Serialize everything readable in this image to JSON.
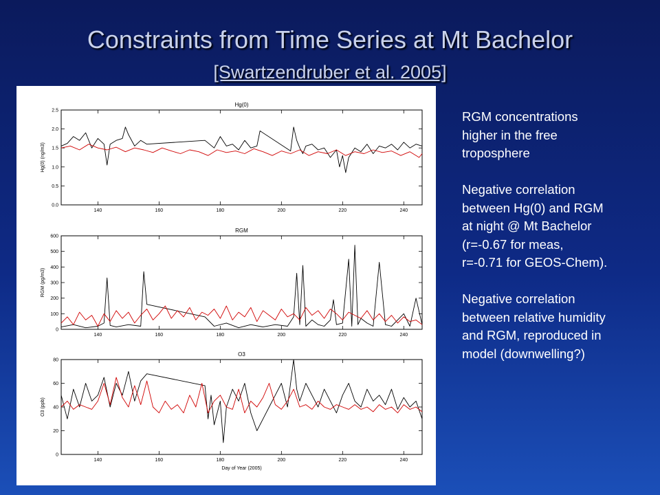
{
  "slide": {
    "title": "Constraints from Time Series at Mt Bachelor",
    "subtitle": "[Swartzendruber et al. 2005]"
  },
  "notes": [
    [
      "RGM concentrations",
      "higher in the free",
      "troposphere"
    ],
    [
      "Negative correlation",
      "between Hg(0) and RGM",
      "at night @ Mt Bachelor",
      "(r=-0.67 for meas,",
      "r=-0.71 for GEOS-Chem)."
    ],
    [
      "Negative correlation",
      "between relative humidity",
      "and RGM, reproduced in",
      "model (downwelling?)"
    ]
  ],
  "colors": {
    "measured": "#000000",
    "model": "#d00000"
  },
  "chart_data": [
    {
      "type": "line",
      "title": "Hg(0)",
      "ylabel": "Hg(0) (ng/m3)",
      "xlabel": "",
      "xlim": [
        128,
        246
      ],
      "ylim": [
        0,
        2.5
      ],
      "xticks": [
        140,
        160,
        180,
        200,
        220,
        240
      ],
      "yticks": [
        0.0,
        0.5,
        1.0,
        1.5,
        2.0,
        2.5
      ],
      "ytick_labels": [
        "0.0",
        "0.5",
        "1.0",
        "1.5",
        "2.0",
        "2.5"
      ],
      "series": [
        {
          "color": "#000000",
          "x": [
            128,
            130,
            132,
            134,
            136,
            138,
            140,
            142,
            143,
            144,
            146,
            148,
            149,
            150,
            152,
            154,
            156,
            175,
            178,
            180,
            182,
            184,
            186,
            188,
            190,
            192,
            193,
            203,
            204,
            205,
            206,
            207,
            208,
            210,
            212,
            214,
            216,
            218,
            219,
            220,
            221,
            222,
            224,
            226,
            228,
            230,
            232,
            234,
            236,
            238,
            240,
            242,
            244,
            246
          ],
          "y": [
            1.55,
            1.62,
            1.8,
            1.7,
            1.9,
            1.5,
            1.75,
            1.6,
            1.05,
            1.6,
            1.7,
            1.75,
            2.05,
            1.85,
            1.55,
            1.7,
            1.6,
            1.7,
            1.5,
            1.8,
            1.55,
            1.6,
            1.45,
            1.7,
            1.5,
            1.55,
            1.95,
            1.42,
            2.05,
            1.7,
            1.5,
            1.35,
            1.55,
            1.6,
            1.45,
            1.5,
            1.25,
            1.45,
            1.0,
            1.3,
            0.85,
            1.25,
            1.5,
            1.4,
            1.6,
            1.35,
            1.55,
            1.5,
            1.6,
            1.45,
            1.65,
            1.5,
            1.6,
            1.55
          ]
        },
        {
          "color": "#d00000",
          "x": [
            128,
            131,
            134,
            137,
            140,
            143,
            146,
            149,
            152,
            155,
            158,
            161,
            164,
            167,
            170,
            173,
            176,
            179,
            182,
            185,
            188,
            191,
            194,
            197,
            200,
            203,
            206,
            209,
            212,
            215,
            218,
            221,
            224,
            227,
            230,
            233,
            236,
            239,
            242,
            245,
            246
          ],
          "y": [
            1.5,
            1.55,
            1.45,
            1.6,
            1.5,
            1.45,
            1.52,
            1.4,
            1.5,
            1.45,
            1.38,
            1.5,
            1.42,
            1.35,
            1.45,
            1.4,
            1.3,
            1.45,
            1.38,
            1.42,
            1.35,
            1.48,
            1.4,
            1.3,
            1.42,
            1.35,
            1.45,
            1.3,
            1.4,
            1.35,
            1.45,
            1.3,
            1.4,
            1.35,
            1.45,
            1.38,
            1.42,
            1.3,
            1.4,
            1.25,
            1.35
          ]
        }
      ]
    },
    {
      "type": "line",
      "title": "RGM",
      "ylabel": "RGM (pg/m3)",
      "xlabel": "",
      "xlim": [
        128,
        246
      ],
      "ylim": [
        0,
        600
      ],
      "xticks": [
        140,
        160,
        180,
        200,
        220,
        240
      ],
      "yticks": [
        0,
        100,
        200,
        300,
        400,
        500,
        600
      ],
      "ytick_labels": [
        "0",
        "100",
        "200",
        "300",
        "400",
        "500",
        "600"
      ],
      "series": [
        {
          "color": "#000000",
          "x": [
            128,
            132,
            136,
            140,
            142,
            143,
            144,
            146,
            150,
            154,
            155,
            156,
            175,
            178,
            182,
            186,
            190,
            194,
            198,
            202,
            204,
            205,
            206,
            207,
            208,
            210,
            212,
            214,
            216,
            217,
            218,
            220,
            222,
            223,
            224,
            225,
            226,
            228,
            230,
            232,
            234,
            236,
            238,
            240,
            242,
            244,
            246
          ],
          "y": [
            15,
            30,
            10,
            20,
            40,
            330,
            25,
            15,
            30,
            20,
            370,
            160,
            80,
            20,
            40,
            10,
            30,
            15,
            30,
            20,
            80,
            360,
            30,
            410,
            20,
            60,
            30,
            20,
            60,
            190,
            30,
            40,
            450,
            20,
            540,
            30,
            70,
            40,
            20,
            430,
            30,
            20,
            60,
            100,
            20,
            200,
            30
          ]
        },
        {
          "color": "#d00000",
          "x": [
            128,
            130,
            132,
            134,
            136,
            138,
            140,
            142,
            144,
            146,
            148,
            150,
            152,
            154,
            156,
            158,
            160,
            162,
            164,
            166,
            168,
            170,
            172,
            174,
            176,
            178,
            180,
            182,
            184,
            186,
            188,
            190,
            192,
            194,
            196,
            198,
            200,
            202,
            204,
            206,
            208,
            210,
            212,
            214,
            216,
            218,
            220,
            222,
            224,
            226,
            228,
            230,
            232,
            234,
            236,
            238,
            240,
            242,
            244,
            246
          ],
          "y": [
            40,
            80,
            30,
            110,
            60,
            90,
            20,
            100,
            50,
            120,
            70,
            110,
            40,
            90,
            130,
            60,
            100,
            150,
            70,
            120,
            80,
            140,
            60,
            110,
            90,
            130,
            70,
            150,
            60,
            110,
            80,
            140,
            50,
            120,
            90,
            60,
            130,
            80,
            100,
            60,
            140,
            90,
            120,
            70,
            130,
            100,
            60,
            110,
            90,
            70,
            120,
            60,
            100,
            50,
            90,
            40,
            80,
            50,
            60,
            30
          ]
        }
      ]
    },
    {
      "type": "line",
      "title": "O3",
      "ylabel": "O3 (ppb)",
      "xlabel": "Day of Year (2005)",
      "xlim": [
        128,
        246
      ],
      "ylim": [
        0,
        80
      ],
      "xticks": [
        140,
        160,
        180,
        200,
        220,
        240
      ],
      "yticks": [
        0,
        20,
        40,
        60,
        80
      ],
      "ytick_labels": [
        "0",
        "20",
        "40",
        "60",
        "80"
      ],
      "series": [
        {
          "color": "#000000",
          "x": [
            128,
            130,
            132,
            134,
            136,
            138,
            140,
            142,
            144,
            146,
            148,
            150,
            152,
            154,
            156,
            175,
            176,
            177,
            178,
            180,
            181,
            182,
            184,
            186,
            188,
            190,
            192,
            194,
            196,
            198,
            200,
            202,
            204,
            205,
            206,
            208,
            210,
            212,
            214,
            216,
            218,
            220,
            222,
            224,
            226,
            228,
            230,
            232,
            234,
            236,
            238,
            240,
            242,
            244,
            246
          ],
          "y": [
            50,
            30,
            55,
            40,
            60,
            45,
            50,
            65,
            40,
            60,
            50,
            70,
            45,
            62,
            68,
            58,
            30,
            50,
            25,
            45,
            10,
            40,
            55,
            45,
            60,
            35,
            20,
            30,
            40,
            50,
            60,
            40,
            80,
            55,
            45,
            60,
            50,
            40,
            55,
            45,
            35,
            50,
            60,
            45,
            40,
            55,
            45,
            50,
            42,
            55,
            38,
            48,
            40,
            45,
            30
          ]
        },
        {
          "color": "#d00000",
          "x": [
            128,
            130,
            132,
            134,
            136,
            138,
            140,
            142,
            144,
            146,
            148,
            150,
            152,
            154,
            156,
            158,
            160,
            162,
            164,
            166,
            168,
            170,
            172,
            174,
            176,
            178,
            180,
            182,
            184,
            186,
            188,
            190,
            192,
            194,
            196,
            198,
            200,
            202,
            204,
            206,
            208,
            210,
            212,
            214,
            216,
            218,
            220,
            222,
            224,
            226,
            228,
            230,
            232,
            234,
            236,
            238,
            240,
            242,
            244,
            246
          ],
          "y": [
            40,
            45,
            38,
            42,
            40,
            38,
            45,
            60,
            42,
            65,
            48,
            40,
            58,
            42,
            62,
            40,
            35,
            45,
            38,
            42,
            35,
            50,
            40,
            60,
            35,
            45,
            50,
            40,
            38,
            55,
            35,
            45,
            40,
            48,
            60,
            42,
            38,
            45,
            55,
            40,
            42,
            38,
            45,
            40,
            38,
            42,
            40,
            38,
            42,
            38,
            40,
            36,
            42,
            38,
            40,
            35,
            42,
            38,
            40,
            36
          ]
        }
      ]
    }
  ]
}
